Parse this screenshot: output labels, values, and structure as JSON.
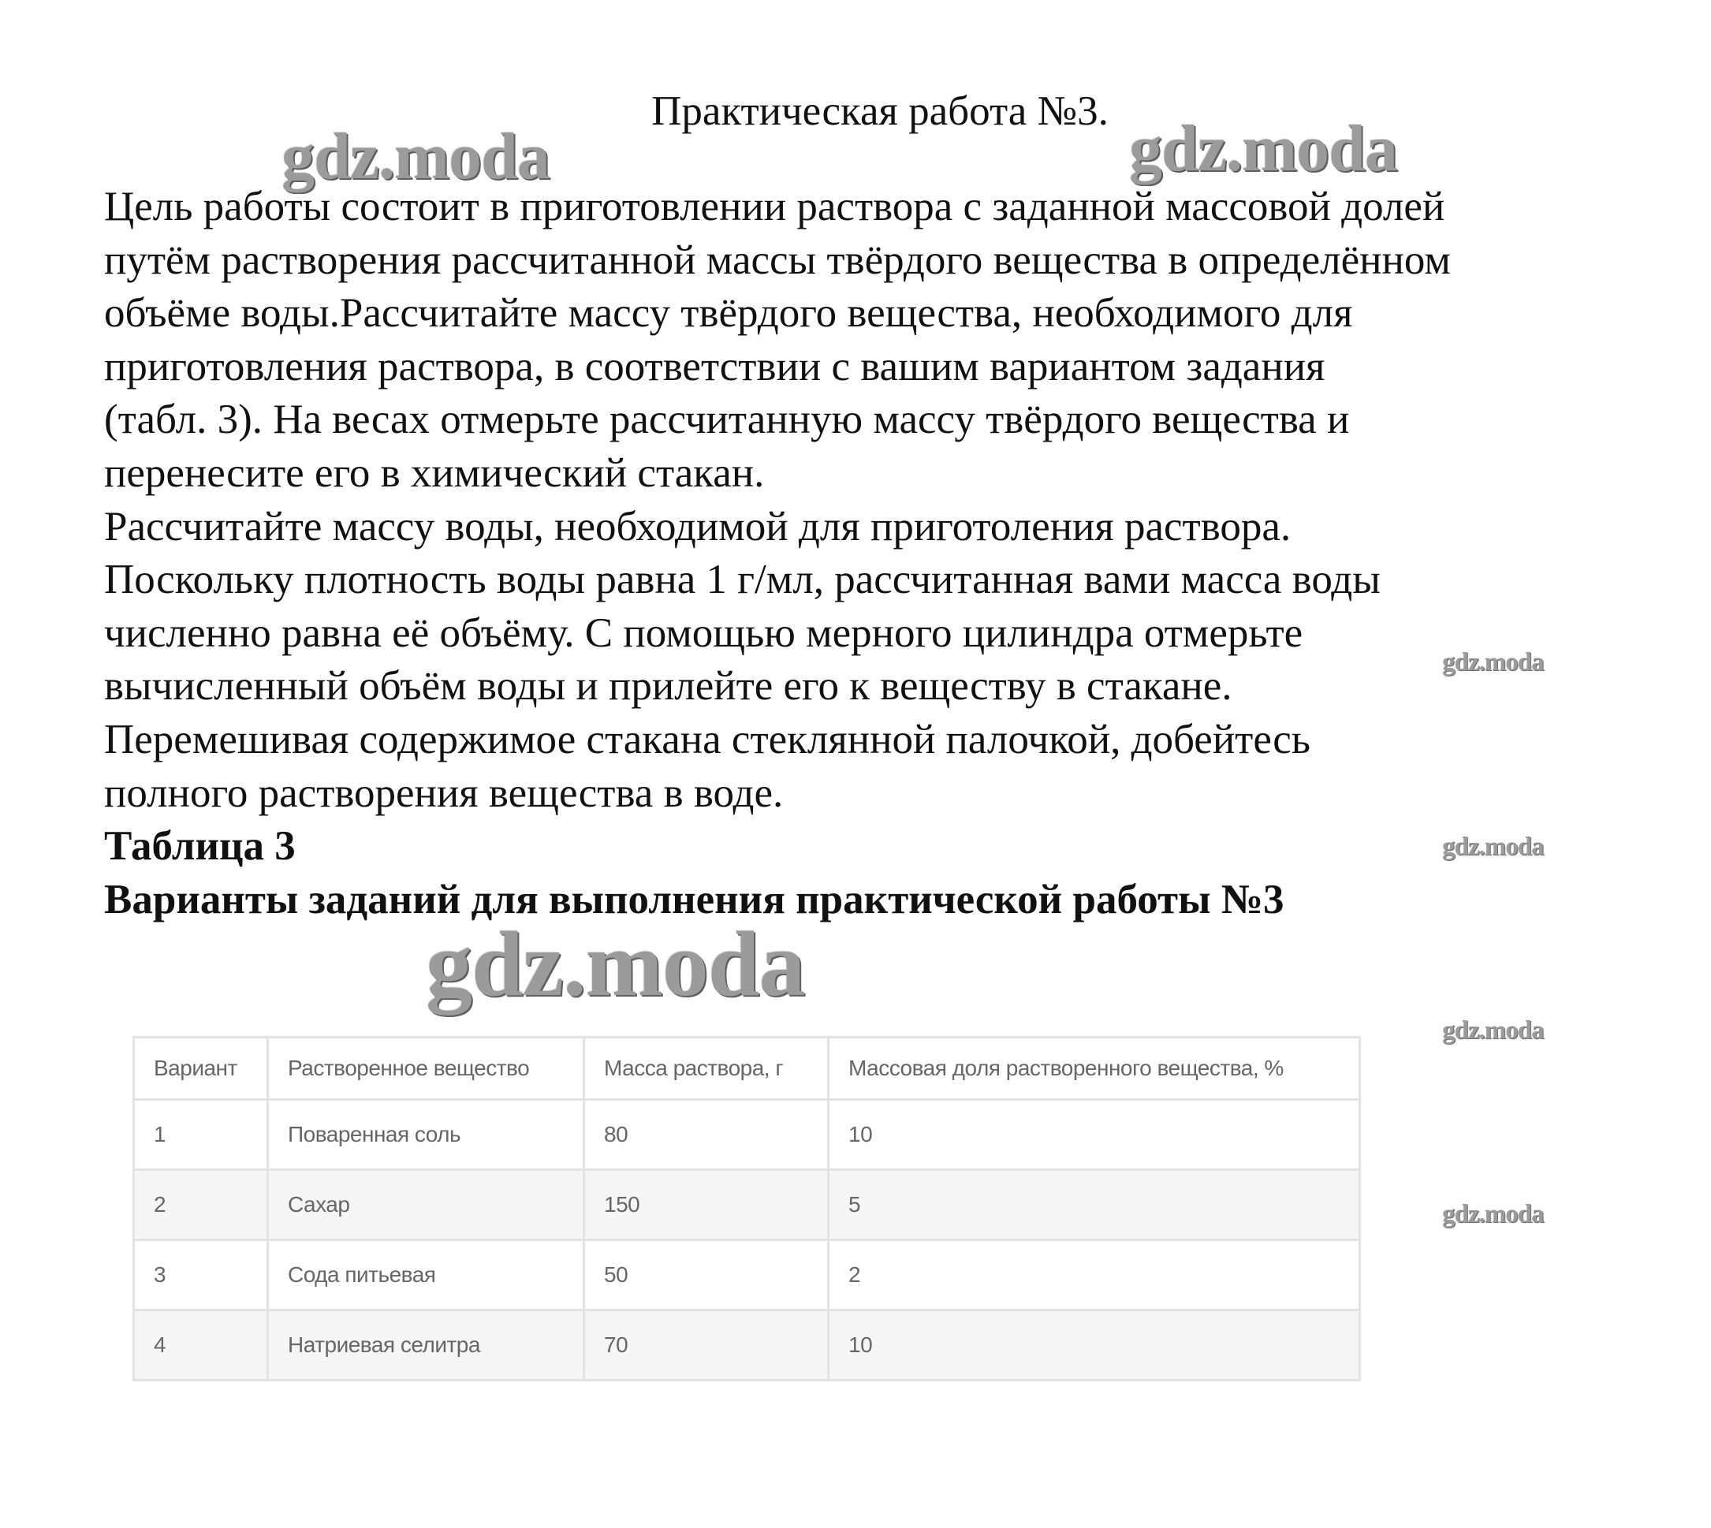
{
  "title": "Практическая работа №3.",
  "body_lines": [
    "Цель работы состоит в приготовлении раствора с заданной массовой долей",
    "путём растворения рассчитанной массы твёрдого вещества в определённом",
    "объёме воды.Рассчитайте массу твёрдого вещества, необходимого для",
    "приготовления раствора, в соответствии с вашим вариантом задания",
    "(табл. 3). На весах отмерьте рассчитанную массу твёрдого вещества и",
    "перенесите его в химический стакан.",
    "Рассчитайте массу воды, необходимой для приготоления раствора.",
    "Поскольку плотность воды равна 1 г/мл, рассчитанная вами масса воды",
    "численно равна её объёму. С помощью мерного цилиндра отмерьте",
    "вычисленный объём воды и прилейте его к веществу в стакане.",
    "Перемешивая содержимое стакана стеклянной палочкой, добейтесь",
    "полного растворения вещества в воде."
  ],
  "table_label": "Таблица 3",
  "table_caption": "Варианты заданий для выполнения практической работы №3",
  "table": {
    "headers": [
      "Вариант",
      "Растворенное вещество",
      "Масса раствора, г",
      "Массовая доля растворенного вещества, %"
    ],
    "rows": [
      [
        "1",
        "Поваренная соль",
        "80",
        "10"
      ],
      [
        "2",
        "Сахар",
        "150",
        "5"
      ],
      [
        "3",
        "Сода питьевая",
        "50",
        "2"
      ],
      [
        "4",
        "Натриевая селитра",
        "70",
        "10"
      ]
    ]
  },
  "watermark": "gdz.moda"
}
